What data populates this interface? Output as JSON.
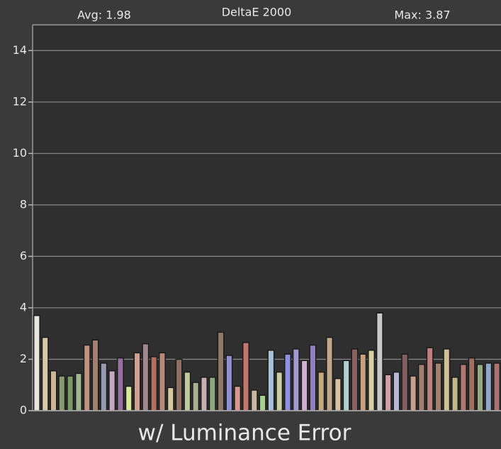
{
  "chart_data": {
    "type": "bar",
    "title": "DeltaE 2000",
    "annotations": [
      "Avg: 1.98",
      "Max: 3.87"
    ],
    "xlabel": "w/ Luminance Error",
    "values": [
      3.7,
      2.85,
      1.55,
      1.35,
      1.35,
      1.45,
      2.55,
      2.75,
      1.85,
      1.55,
      2.05,
      0.95,
      2.25,
      2.6,
      2.1,
      2.25,
      0.9,
      2.0,
      1.5,
      1.1,
      1.3,
      1.3,
      3.05,
      2.15,
      0.95,
      2.65,
      0.8,
      0.6,
      2.35,
      1.5,
      2.2,
      2.4,
      1.95,
      2.55,
      1.5,
      2.85,
      1.25,
      1.95,
      2.4,
      2.2,
      2.35,
      3.8,
      1.4,
      1.5,
      2.2,
      1.35,
      1.8,
      2.45,
      1.85,
      2.4,
      1.3,
      1.8,
      2.05,
      1.8,
      1.85,
      1.85
    ],
    "colors": [
      "#e8e8e0",
      "#d8c8a8",
      "#c8b898",
      "#8a9a70",
      "#789868",
      "#a0b890",
      "#c09080",
      "#a08070",
      "#9898b0",
      "#c8a8c0",
      "#9870a0",
      "#d8e8a0",
      "#d0a090",
      "#a08890",
      "#b07060",
      "#b88878",
      "#d8c8a0",
      "#907060",
      "#c0c8a0",
      "#a8b090",
      "#c8b0b0",
      "#90a880",
      "#907868",
      "#9090d0",
      "#d89890",
      "#c07870",
      "#c8b8a0",
      "#a8d090",
      "#a8c0d8",
      "#c8d0a0",
      "#9090e0",
      "#a098d0",
      "#d0b0d0",
      "#9080c0",
      "#c8a880",
      "#c0a888",
      "#d8c0a0",
      "#b0d0d0",
      "#886060",
      "#c8a080",
      "#d8d0a0",
      "#c8c8c8",
      "#d0a0a8",
      "#b8b8d8",
      "#806060",
      "#c8a090",
      "#a08070",
      "#c08080",
      "#a08070",
      "#d0c098",
      "#c0b888",
      "#b07870",
      "#a07060",
      "#98a880",
      "#90a8c8",
      "#b07070"
    ],
    "ylim": [
      0,
      15
    ],
    "yticks": [
      0,
      2,
      4,
      6,
      8,
      10,
      12,
      14
    ],
    "grid": true
  }
}
